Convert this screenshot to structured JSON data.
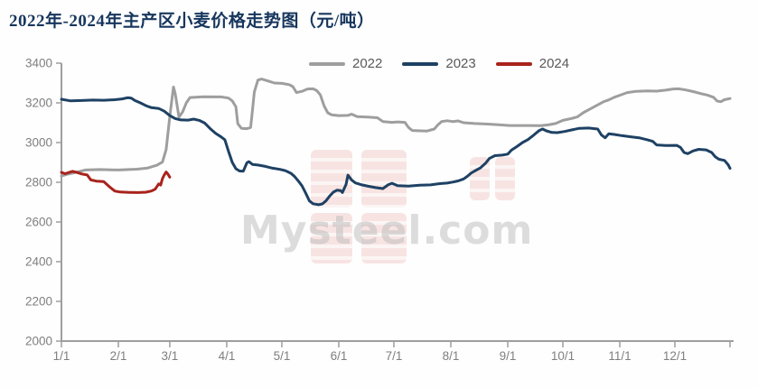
{
  "title": "2022年-2024年主产区小麦价格走势图（元/吨）",
  "watermark": {
    "text": "Mysteel.com"
  },
  "colors": {
    "title": "#17365d",
    "axis": "#9e9e9e",
    "tick_label": "#7f7f7f",
    "legend_label": "#595959",
    "watermark_text": "rgba(185,185,185,0.5)",
    "watermark_logo": "rgba(214,104,92,0.9)"
  },
  "legend": {
    "items": [
      "2022",
      "2023",
      "2024"
    ]
  },
  "chart_data": {
    "type": "line",
    "title": "2022年-2024年主产区小麦价格走势图（元/吨）",
    "unit": "元/吨",
    "x_unit": "day_of_year",
    "ylim": [
      2000,
      3400
    ],
    "yticks": [
      2000,
      2200,
      2400,
      2600,
      2800,
      3000,
      3200,
      3400
    ],
    "xticks": [
      {
        "label": "1/1",
        "day": 1
      },
      {
        "label": "2/1",
        "day": 32
      },
      {
        "label": "3/1",
        "day": 60
      },
      {
        "label": "4/1",
        "day": 91
      },
      {
        "label": "5/1",
        "day": 121
      },
      {
        "label": "6/1",
        "day": 152
      },
      {
        "label": "7/1",
        "day": 182
      },
      {
        "label": "8/1",
        "day": 213
      },
      {
        "label": "9/1",
        "day": 244
      },
      {
        "label": "10/1",
        "day": 274
      },
      {
        "label": "11/1",
        "day": 305
      },
      {
        "label": "12/1",
        "day": 335
      },
      {
        "label": "",
        "day": 365
      }
    ],
    "legend_position": "top",
    "grid": false,
    "series": [
      {
        "name": "2022",
        "color": "#9e9e9e",
        "points": [
          [
            1,
            2832
          ],
          [
            4,
            2840
          ],
          [
            9,
            2850
          ],
          [
            14,
            2862
          ],
          [
            22,
            2864
          ],
          [
            32,
            2862
          ],
          [
            42,
            2866
          ],
          [
            48,
            2872
          ],
          [
            53,
            2886
          ],
          [
            56,
            2902
          ],
          [
            58,
            2965
          ],
          [
            60,
            3130
          ],
          [
            62,
            3280
          ],
          [
            63,
            3245
          ],
          [
            65,
            3128
          ],
          [
            67,
            3155
          ],
          [
            69,
            3200
          ],
          [
            71,
            3227
          ],
          [
            78,
            3231
          ],
          [
            88,
            3230
          ],
          [
            92,
            3224
          ],
          [
            94,
            3210
          ],
          [
            96,
            3180
          ],
          [
            97,
            3095
          ],
          [
            99,
            3072
          ],
          [
            102,
            3070
          ],
          [
            104,
            3076
          ],
          [
            105,
            3160
          ],
          [
            106,
            3255
          ],
          [
            108,
            3315
          ],
          [
            110,
            3320
          ],
          [
            113,
            3312
          ],
          [
            117,
            3300
          ],
          [
            121,
            3298
          ],
          [
            125,
            3292
          ],
          [
            127,
            3282
          ],
          [
            129,
            3252
          ],
          [
            132,
            3258
          ],
          [
            135,
            3270
          ],
          [
            138,
            3271
          ],
          [
            140,
            3262
          ],
          [
            142,
            3240
          ],
          [
            144,
            3185
          ],
          [
            146,
            3150
          ],
          [
            148,
            3140
          ],
          [
            152,
            3136
          ],
          [
            157,
            3137
          ],
          [
            159,
            3143
          ],
          [
            162,
            3131
          ],
          [
            168,
            3128
          ],
          [
            173,
            3125
          ],
          [
            176,
            3106
          ],
          [
            181,
            3102
          ],
          [
            184,
            3104
          ],
          [
            188,
            3102
          ],
          [
            190,
            3076
          ],
          [
            192,
            3061
          ],
          [
            200,
            3058
          ],
          [
            204,
            3068
          ],
          [
            206,
            3090
          ],
          [
            208,
            3106
          ],
          [
            211,
            3110
          ],
          [
            214,
            3106
          ],
          [
            217,
            3109
          ],
          [
            220,
            3100
          ],
          [
            226,
            3096
          ],
          [
            233,
            3093
          ],
          [
            240,
            3089
          ],
          [
            245,
            3086
          ],
          [
            255,
            3086
          ],
          [
            262,
            3085
          ],
          [
            266,
            3089
          ],
          [
            270,
            3096
          ],
          [
            274,
            3112
          ],
          [
            279,
            3122
          ],
          [
            282,
            3130
          ],
          [
            285,
            3150
          ],
          [
            288,
            3165
          ],
          [
            292,
            3185
          ],
          [
            296,
            3205
          ],
          [
            299,
            3215
          ],
          [
            302,
            3228
          ],
          [
            305,
            3238
          ],
          [
            309,
            3252
          ],
          [
            314,
            3258
          ],
          [
            320,
            3260
          ],
          [
            325,
            3259
          ],
          [
            330,
            3264
          ],
          [
            334,
            3270
          ],
          [
            337,
            3271
          ],
          [
            341,
            3265
          ],
          [
            345,
            3257
          ],
          [
            349,
            3247
          ],
          [
            353,
            3238
          ],
          [
            356,
            3228
          ],
          [
            358,
            3209
          ],
          [
            360,
            3206
          ],
          [
            362,
            3216
          ],
          [
            365,
            3222
          ]
        ]
      },
      {
        "name": "2023",
        "color": "#1e4164",
        "points": [
          [
            1,
            3218
          ],
          [
            6,
            3210
          ],
          [
            12,
            3212
          ],
          [
            18,
            3214
          ],
          [
            24,
            3213
          ],
          [
            30,
            3216
          ],
          [
            34,
            3220
          ],
          [
            37,
            3226
          ],
          [
            39,
            3224
          ],
          [
            41,
            3212
          ],
          [
            44,
            3200
          ],
          [
            47,
            3186
          ],
          [
            50,
            3176
          ],
          [
            54,
            3172
          ],
          [
            57,
            3158
          ],
          [
            60,
            3136
          ],
          [
            63,
            3121
          ],
          [
            66,
            3114
          ],
          [
            70,
            3113
          ],
          [
            73,
            3118
          ],
          [
            76,
            3112
          ],
          [
            79,
            3098
          ],
          [
            82,
            3070
          ],
          [
            85,
            3046
          ],
          [
            88,
            3028
          ],
          [
            90,
            3014
          ],
          [
            92,
            2955
          ],
          [
            94,
            2900
          ],
          [
            96,
            2868
          ],
          [
            98,
            2857
          ],
          [
            100,
            2856
          ],
          [
            102,
            2898
          ],
          [
            103,
            2904
          ],
          [
            105,
            2890
          ],
          [
            108,
            2887
          ],
          [
            112,
            2880
          ],
          [
            116,
            2871
          ],
          [
            120,
            2865
          ],
          [
            123,
            2858
          ],
          [
            126,
            2845
          ],
          [
            128,
            2828
          ],
          [
            130,
            2806
          ],
          [
            132,
            2782
          ],
          [
            134,
            2745
          ],
          [
            136,
            2706
          ],
          [
            138,
            2692
          ],
          [
            141,
            2687
          ],
          [
            143,
            2691
          ],
          [
            145,
            2706
          ],
          [
            147,
            2730
          ],
          [
            149,
            2750
          ],
          [
            151,
            2760
          ],
          [
            153,
            2758
          ],
          [
            154,
            2748
          ],
          [
            156,
            2790
          ],
          [
            157,
            2836
          ],
          [
            159,
            2812
          ],
          [
            161,
            2797
          ],
          [
            164,
            2788
          ],
          [
            168,
            2780
          ],
          [
            172,
            2773
          ],
          [
            176,
            2768
          ],
          [
            179,
            2788
          ],
          [
            181,
            2795
          ],
          [
            184,
            2783
          ],
          [
            190,
            2781
          ],
          [
            196,
            2785
          ],
          [
            202,
            2787
          ],
          [
            207,
            2793
          ],
          [
            211,
            2796
          ],
          [
            214,
            2801
          ],
          [
            217,
            2807
          ],
          [
            220,
            2817
          ],
          [
            222,
            2830
          ],
          [
            224,
            2846
          ],
          [
            226,
            2857
          ],
          [
            229,
            2872
          ],
          [
            232,
            2897
          ],
          [
            234,
            2920
          ],
          [
            237,
            2934
          ],
          [
            241,
            2937
          ],
          [
            244,
            2942
          ],
          [
            246,
            2962
          ],
          [
            249,
            2980
          ],
          [
            252,
            3000
          ],
          [
            255,
            3015
          ],
          [
            258,
            3037
          ],
          [
            261,
            3060
          ],
          [
            263,
            3068
          ],
          [
            265,
            3059
          ],
          [
            268,
            3051
          ],
          [
            271,
            3050
          ],
          [
            275,
            3056
          ],
          [
            279,
            3064
          ],
          [
            283,
            3072
          ],
          [
            288,
            3073
          ],
          [
            293,
            3068
          ],
          [
            295,
            3038
          ],
          [
            297,
            3024
          ],
          [
            299,
            3044
          ],
          [
            302,
            3041
          ],
          [
            306,
            3035
          ],
          [
            311,
            3029
          ],
          [
            316,
            3023
          ],
          [
            320,
            3014
          ],
          [
            323,
            3006
          ],
          [
            325,
            2988
          ],
          [
            330,
            2985
          ],
          [
            336,
            2986
          ],
          [
            338,
            2976
          ],
          [
            340,
            2950
          ],
          [
            342,
            2944
          ],
          [
            345,
            2958
          ],
          [
            348,
            2966
          ],
          [
            352,
            2963
          ],
          [
            355,
            2950
          ],
          [
            357,
            2928
          ],
          [
            359,
            2916
          ],
          [
            362,
            2910
          ],
          [
            364,
            2888
          ],
          [
            365,
            2870
          ]
        ]
      },
      {
        "name": "2024",
        "color": "#a8231c",
        "points": [
          [
            1,
            2850
          ],
          [
            3,
            2843
          ],
          [
            5,
            2849
          ],
          [
            7,
            2855
          ],
          [
            9,
            2851
          ],
          [
            12,
            2842
          ],
          [
            15,
            2837
          ],
          [
            17,
            2812
          ],
          [
            20,
            2806
          ],
          [
            24,
            2803
          ],
          [
            27,
            2778
          ],
          [
            30,
            2756
          ],
          [
            33,
            2751
          ],
          [
            38,
            2749
          ],
          [
            43,
            2748
          ],
          [
            47,
            2750
          ],
          [
            50,
            2756
          ],
          [
            52,
            2765
          ],
          [
            54,
            2792
          ],
          [
            55,
            2786
          ],
          [
            56,
            2818
          ],
          [
            57,
            2837
          ],
          [
            58,
            2852
          ],
          [
            59,
            2841
          ],
          [
            60,
            2826
          ]
        ]
      }
    ]
  }
}
